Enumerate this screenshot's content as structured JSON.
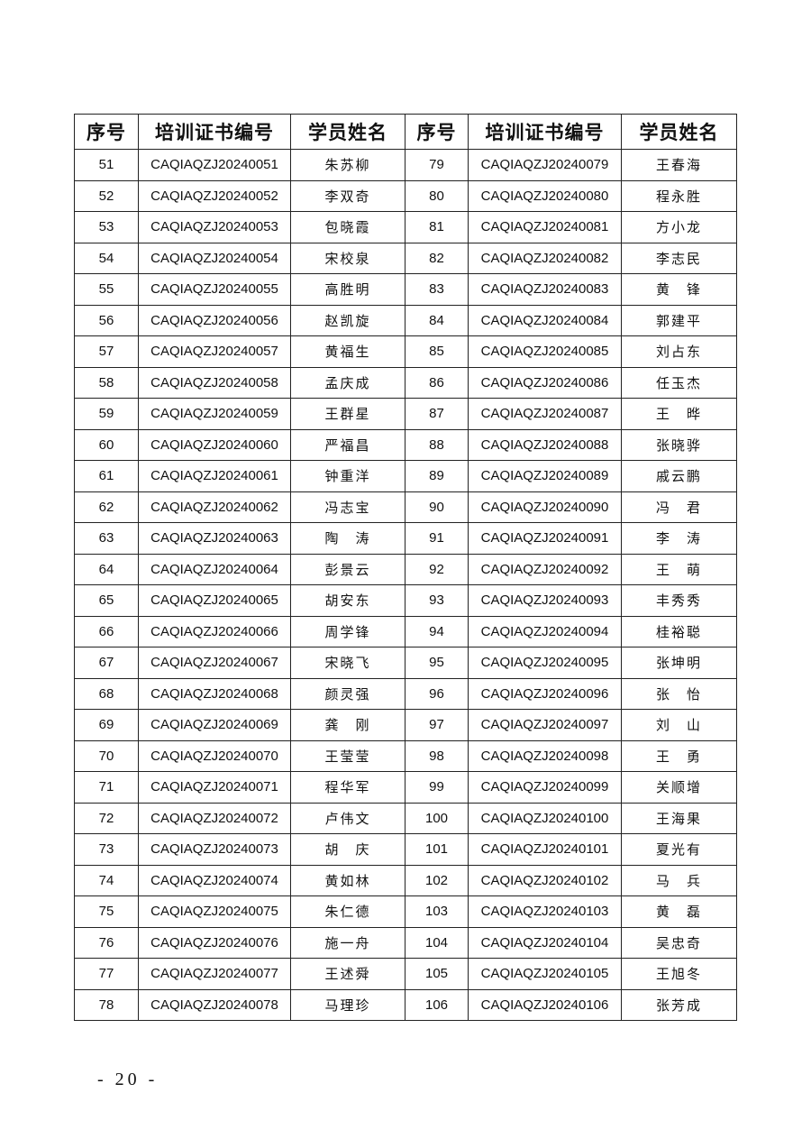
{
  "table": {
    "headers": [
      "序号",
      "培训证书编号",
      "学员姓名",
      "序号",
      "培训证书编号",
      "学员姓名"
    ],
    "rows": [
      [
        "51",
        "CAQIAQZJ20240051",
        "朱苏柳",
        "79",
        "CAQIAQZJ20240079",
        "王春海"
      ],
      [
        "52",
        "CAQIAQZJ20240052",
        "李双奇",
        "80",
        "CAQIAQZJ20240080",
        "程永胜"
      ],
      [
        "53",
        "CAQIAQZJ20240053",
        "包晓霞",
        "81",
        "CAQIAQZJ20240081",
        "方小龙"
      ],
      [
        "54",
        "CAQIAQZJ20240054",
        "宋校泉",
        "82",
        "CAQIAQZJ20240082",
        "李志民"
      ],
      [
        "55",
        "CAQIAQZJ20240055",
        "高胜明",
        "83",
        "CAQIAQZJ20240083",
        "黄　锋"
      ],
      [
        "56",
        "CAQIAQZJ20240056",
        "赵凯旋",
        "84",
        "CAQIAQZJ20240084",
        "郭建平"
      ],
      [
        "57",
        "CAQIAQZJ20240057",
        "黄福生",
        "85",
        "CAQIAQZJ20240085",
        "刘占东"
      ],
      [
        "58",
        "CAQIAQZJ20240058",
        "孟庆成",
        "86",
        "CAQIAQZJ20240086",
        "任玉杰"
      ],
      [
        "59",
        "CAQIAQZJ20240059",
        "王群星",
        "87",
        "CAQIAQZJ20240087",
        "王　晔"
      ],
      [
        "60",
        "CAQIAQZJ20240060",
        "严福昌",
        "88",
        "CAQIAQZJ20240088",
        "张晓骅"
      ],
      [
        "61",
        "CAQIAQZJ20240061",
        "钟重洋",
        "89",
        "CAQIAQZJ20240089",
        "戚云鹏"
      ],
      [
        "62",
        "CAQIAQZJ20240062",
        "冯志宝",
        "90",
        "CAQIAQZJ20240090",
        "冯　君"
      ],
      [
        "63",
        "CAQIAQZJ20240063",
        "陶　涛",
        "91",
        "CAQIAQZJ20240091",
        "李　涛"
      ],
      [
        "64",
        "CAQIAQZJ20240064",
        "彭景云",
        "92",
        "CAQIAQZJ20240092",
        "王　萌"
      ],
      [
        "65",
        "CAQIAQZJ20240065",
        "胡安东",
        "93",
        "CAQIAQZJ20240093",
        "丰秀秀"
      ],
      [
        "66",
        "CAQIAQZJ20240066",
        "周学锋",
        "94",
        "CAQIAQZJ20240094",
        "桂裕聪"
      ],
      [
        "67",
        "CAQIAQZJ20240067",
        "宋晓飞",
        "95",
        "CAQIAQZJ20240095",
        "张坤明"
      ],
      [
        "68",
        "CAQIAQZJ20240068",
        "颜灵强",
        "96",
        "CAQIAQZJ20240096",
        "张　怡"
      ],
      [
        "69",
        "CAQIAQZJ20240069",
        "龚　刚",
        "97",
        "CAQIAQZJ20240097",
        "刘　山"
      ],
      [
        "70",
        "CAQIAQZJ20240070",
        "王莹莹",
        "98",
        "CAQIAQZJ20240098",
        "王　勇"
      ],
      [
        "71",
        "CAQIAQZJ20240071",
        "程华军",
        "99",
        "CAQIAQZJ20240099",
        "关顺增"
      ],
      [
        "72",
        "CAQIAQZJ20240072",
        "卢伟文",
        "100",
        "CAQIAQZJ20240100",
        "王海果"
      ],
      [
        "73",
        "CAQIAQZJ20240073",
        "胡　庆",
        "101",
        "CAQIAQZJ20240101",
        "夏光有"
      ],
      [
        "74",
        "CAQIAQZJ20240074",
        "黄如林",
        "102",
        "CAQIAQZJ20240102",
        "马　兵"
      ],
      [
        "75",
        "CAQIAQZJ20240075",
        "朱仁德",
        "103",
        "CAQIAQZJ20240103",
        "黄　磊"
      ],
      [
        "76",
        "CAQIAQZJ20240076",
        "施一舟",
        "104",
        "CAQIAQZJ20240104",
        "吴忠奇"
      ],
      [
        "77",
        "CAQIAQZJ20240077",
        "王述舜",
        "105",
        "CAQIAQZJ20240105",
        "王旭冬"
      ],
      [
        "78",
        "CAQIAQZJ20240078",
        "马理珍",
        "106",
        "CAQIAQZJ20240106",
        "张芳成"
      ]
    ]
  },
  "footer": {
    "page_number": "- 20 -"
  }
}
